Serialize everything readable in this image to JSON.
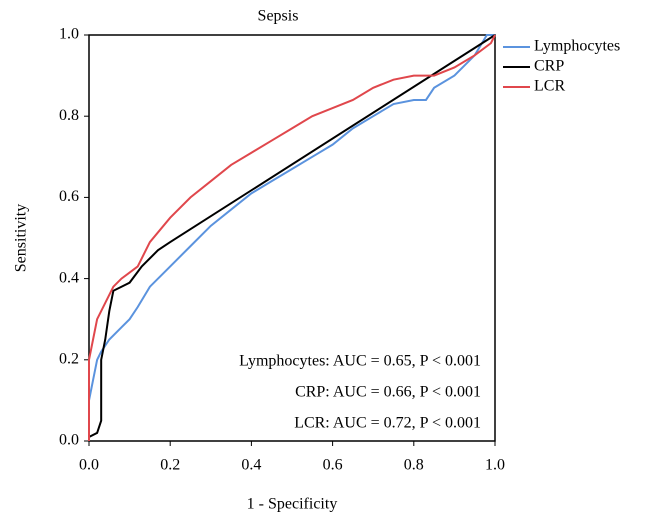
{
  "chart_data": {
    "type": "line",
    "title": "Sepsis",
    "x_label": "1 - Specificity",
    "y_label": "Sensitivity",
    "xlim": [
      0,
      1
    ],
    "ylim": [
      0,
      1
    ],
    "xticks": [
      {
        "value": 0,
        "label": "0.0"
      },
      {
        "value": 0.2,
        "label": "0.2"
      },
      {
        "value": 0.4,
        "label": "0.4"
      },
      {
        "value": 0.6,
        "label": "0.6"
      },
      {
        "value": 0.8,
        "label": "0.8"
      },
      {
        "value": 1,
        "label": "1.0"
      }
    ],
    "yticks": [
      {
        "value": 0,
        "label": "0.0"
      },
      {
        "value": 0.2,
        "label": "0.2"
      },
      {
        "value": 0.4,
        "label": "0.4"
      },
      {
        "value": 0.6,
        "label": "0.6"
      },
      {
        "value": 0.8,
        "label": "0.8"
      },
      {
        "value": 1,
        "label": "1.0"
      }
    ],
    "legend": "right",
    "series": [
      {
        "name": "Lymphocytes",
        "color": "#5b93de",
        "x": [
          0,
          0,
          0.01,
          0.02,
          0.03,
          0.05,
          0.08,
          0.1,
          0.12,
          0.15,
          0.2,
          0.25,
          0.3,
          0.35,
          0.4,
          0.45,
          0.5,
          0.55,
          0.6,
          0.65,
          0.7,
          0.75,
          0.8,
          0.83,
          0.85,
          0.9,
          0.95,
          0.98,
          1
        ],
        "values": [
          0,
          0.1,
          0.15,
          0.2,
          0.22,
          0.25,
          0.28,
          0.3,
          0.33,
          0.38,
          0.43,
          0.48,
          0.53,
          0.57,
          0.61,
          0.64,
          0.67,
          0.7,
          0.73,
          0.77,
          0.8,
          0.83,
          0.84,
          0.84,
          0.87,
          0.9,
          0.95,
          1,
          1
        ]
      },
      {
        "name": "CRP",
        "color": "#000000",
        "x": [
          0,
          0,
          0.02,
          0.03,
          0.03,
          0.04,
          0.05,
          0.06,
          0.08,
          0.1,
          0.13,
          0.17,
          0.2,
          1
        ],
        "values": [
          0,
          0.01,
          0.02,
          0.05,
          0.2,
          0.25,
          0.32,
          0.37,
          0.38,
          0.39,
          0.43,
          0.47,
          0.49,
          1
        ]
      },
      {
        "name": "LCR",
        "color": "#e0474c",
        "x": [
          0,
          0,
          0.01,
          0.02,
          0.04,
          0.06,
          0.08,
          0.12,
          0.15,
          0.2,
          0.25,
          0.3,
          0.35,
          0.4,
          0.45,
          0.5,
          0.55,
          0.6,
          0.65,
          0.7,
          0.75,
          0.8,
          0.85,
          0.9,
          0.95,
          0.99,
          1
        ],
        "values": [
          0,
          0.2,
          0.25,
          0.3,
          0.34,
          0.38,
          0.4,
          0.43,
          0.49,
          0.55,
          0.6,
          0.64,
          0.68,
          0.71,
          0.74,
          0.77,
          0.8,
          0.82,
          0.84,
          0.87,
          0.89,
          0.9,
          0.9,
          0.92,
          0.95,
          0.98,
          1
        ]
      }
    ],
    "annotations": [
      "Lymphocytes: AUC = 0.65, P < 0.001",
      "CRP: AUC = 0.66, P < 0.001",
      "LCR: AUC = 0.72, P < 0.001"
    ]
  }
}
